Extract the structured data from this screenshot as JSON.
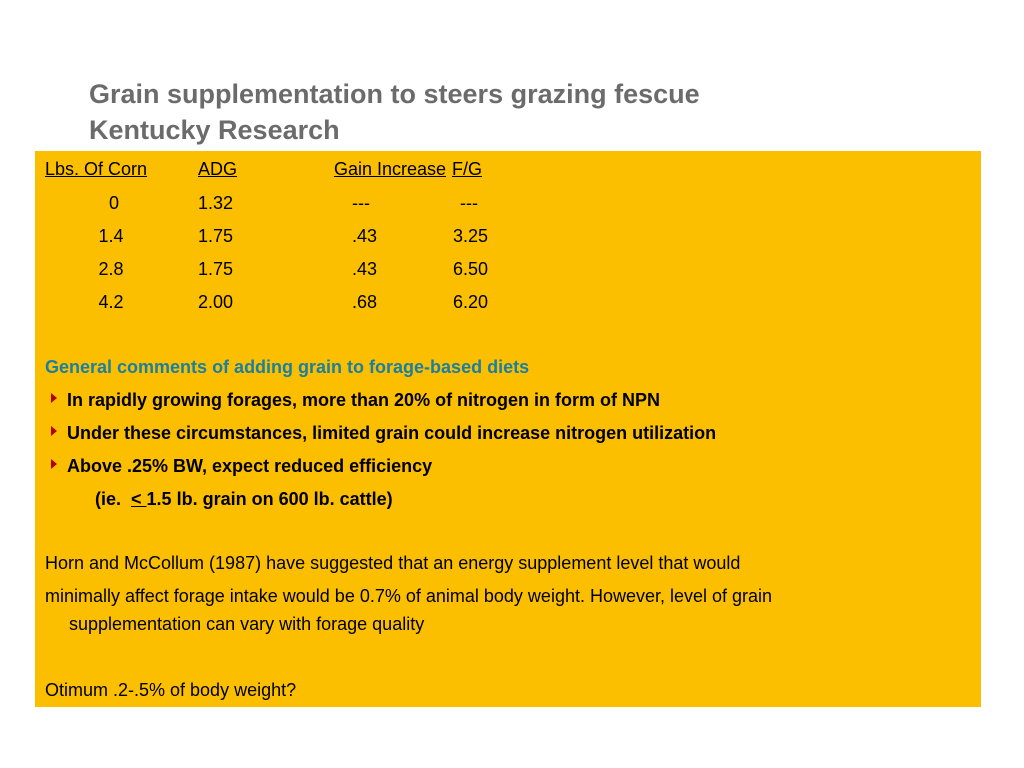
{
  "title": {
    "line1": "Grain supplementation to steers grazing fescue",
    "line2": "Kentucky Research"
  },
  "table": {
    "headers": [
      "Lbs. Of Corn",
      "ADG",
      "Gain Increase",
      "F/G"
    ],
    "rows": [
      [
        "0",
        "1.32",
        "---",
        "---"
      ],
      [
        "1.4",
        "1.75",
        ".43",
        "3.25"
      ],
      [
        "2.8",
        "1.75",
        ".43",
        "6.50"
      ],
      [
        "4.2",
        "2.00",
        ".68",
        "6.20"
      ]
    ]
  },
  "comments": {
    "heading": "General comments of adding grain to forage-based diets",
    "bullets": [
      "In rapidly growing forages, more than 20% of nitrogen in form of NPN",
      "Under these circumstances, limited grain could increase nitrogen utilization",
      "Above .25% BW, expect reduced efficiency"
    ],
    "sub_prefix": "(ie. ",
    "sub_symbol": "< ",
    "sub_suffix": "1.5 lb. grain on 600 lb. cattle)"
  },
  "paragraph": {
    "line1": "Horn and McCollum (1987) have suggested that an energy supplement level that would",
    "line2": "minimally affect forage intake would be 0.7% of animal body weight. However, level of grain",
    "line3": "supplementation can vary with forage quality"
  },
  "footer": {
    "text": "Otimum .2-.5% of body weight?"
  },
  "colors": {
    "panel": "#fcbf00",
    "title": "#6b6b6b",
    "heading": "#1a7fa0",
    "bullet": "#b30000"
  }
}
